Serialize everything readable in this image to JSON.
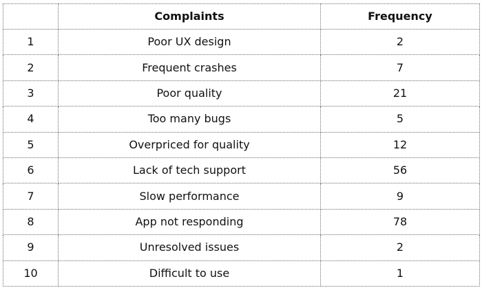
{
  "table": {
    "headers": [
      "",
      "Complaints",
      "Frequency"
    ],
    "rows": [
      {
        "index": "1",
        "complaint": "Poor UX design",
        "frequency": "2"
      },
      {
        "index": "2",
        "complaint": "Frequent crashes",
        "frequency": "7"
      },
      {
        "index": "3",
        "complaint": "Poor quality",
        "frequency": "21"
      },
      {
        "index": "4",
        "complaint": "Too many bugs",
        "frequency": "5"
      },
      {
        "index": "5",
        "complaint": "Overpriced for quality",
        "frequency": "12"
      },
      {
        "index": "6",
        "complaint": "Lack of tech support",
        "frequency": "56"
      },
      {
        "index": "7",
        "complaint": "Slow performance",
        "frequency": "9"
      },
      {
        "index": "8",
        "complaint": "App not responding",
        "frequency": "78"
      },
      {
        "index": "9",
        "complaint": "Unresolved issues",
        "frequency": "2"
      },
      {
        "index": "10",
        "complaint": "Difficult to use",
        "frequency": "1"
      }
    ]
  }
}
